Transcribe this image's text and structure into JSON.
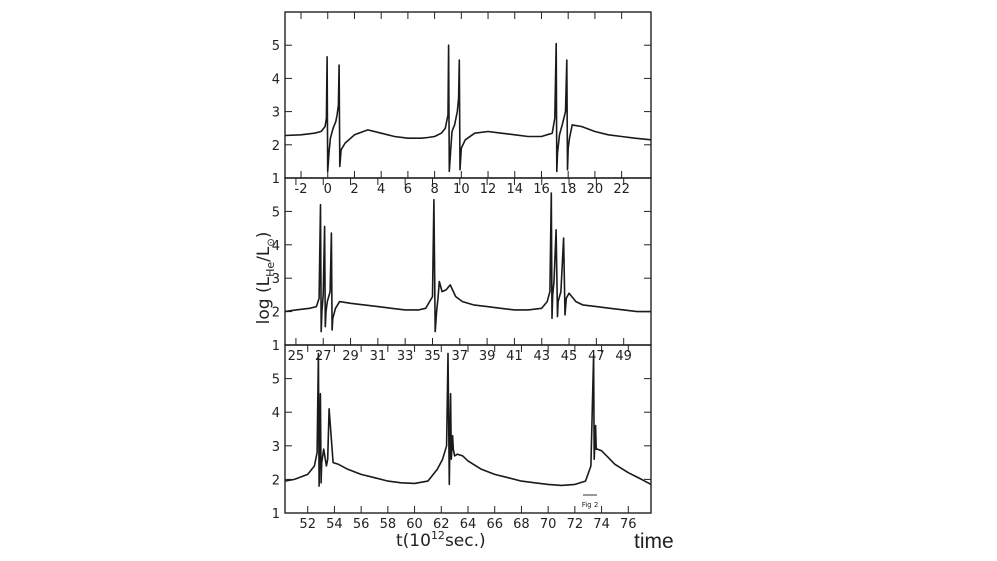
{
  "ylabel": "log (L",
  "ylabel_sub": "He",
  "ylabel_tail": "/L",
  "ylabel_sun": "⊙",
  "ylabel_close": ")",
  "xlabel_main": "t(10",
  "xlabel_exp": "12",
  "xlabel_tail": "sec.)",
  "caption": "time",
  "fig_note": "Fig 2",
  "chart_data": [
    {
      "type": "line",
      "panel": "top",
      "xlim": [
        -3.2,
        24.2
      ],
      "ylim": [
        1,
        6
      ],
      "yticks": [
        "1",
        "2",
        "3",
        "4",
        "5"
      ],
      "xticks": [
        "-2",
        "0",
        "2",
        "4",
        "6",
        "8",
        "10",
        "12",
        "14",
        "16",
        "18",
        "20",
        "22"
      ],
      "series": [
        {
          "x": [
            -3.2,
            -2,
            -1,
            -0.5,
            -0.2,
            -0.1,
            -0.05,
            0,
            0.1,
            0.2,
            0.4,
            0.6,
            0.7,
            0.8,
            0.85,
            0.9,
            1.0,
            1.3,
            2,
            3,
            4,
            5,
            6,
            7,
            7.5,
            8,
            8.5,
            8.8,
            9.0,
            9.05,
            9.1,
            9.2,
            9.3,
            9.5,
            9.7,
            9.8,
            9.85,
            9.9,
            10.0,
            10.3,
            11,
            12,
            13,
            14,
            15,
            16,
            16.8,
            17.0,
            17.1,
            17.15,
            17.2,
            17.35,
            17.55,
            17.8,
            17.9,
            17.95,
            18.0,
            18.1,
            18.3,
            19,
            20,
            21,
            22,
            23,
            24.2
          ],
          "y": [
            2.28,
            2.3,
            2.35,
            2.4,
            2.55,
            2.8,
            4.65,
            1.2,
            1.8,
            2.2,
            2.5,
            2.7,
            2.9,
            3.2,
            4.4,
            1.35,
            1.85,
            2.05,
            2.3,
            2.45,
            2.35,
            2.25,
            2.2,
            2.2,
            2.22,
            2.25,
            2.35,
            2.5,
            2.9,
            5.0,
            1.2,
            1.8,
            2.4,
            2.6,
            3.0,
            3.4,
            4.55,
            1.25,
            1.9,
            2.15,
            2.35,
            2.4,
            2.35,
            2.3,
            2.25,
            2.25,
            2.35,
            2.8,
            5.05,
            1.2,
            1.75,
            2.3,
            2.6,
            3.0,
            4.55,
            1.25,
            1.9,
            2.2,
            2.6,
            2.55,
            2.4,
            2.3,
            2.25,
            2.2,
            2.15
          ]
        }
      ]
    },
    {
      "type": "line",
      "panel": "middle",
      "xlim": [
        24.2,
        51
      ],
      "ylim": [
        1,
        6
      ],
      "yticks": [
        "1",
        "2",
        "3",
        "4",
        "5"
      ],
      "xticks": [
        "25",
        "27",
        "29",
        "31",
        "33",
        "35",
        "37",
        "39",
        "41",
        "43",
        "45",
        "47",
        "49"
      ],
      "series": [
        {
          "x": [
            24.2,
            25,
            26,
            26.5,
            26.7,
            26.8,
            26.85,
            26.9,
            27.0,
            27.1,
            27.15,
            27.2,
            27.3,
            27.5,
            27.6,
            27.65,
            27.7,
            27.9,
            28.2,
            29,
            30,
            31,
            32,
            33,
            34,
            34.5,
            35.0,
            35.1,
            35.2,
            35.3,
            35.4,
            35.5,
            35.7,
            36.0,
            36.3,
            36.7,
            37.2,
            38,
            39,
            40,
            41,
            42,
            43,
            43.4,
            43.6,
            43.7,
            43.75,
            43.8,
            43.9,
            44.05,
            44.15,
            44.2,
            44.4,
            44.6,
            44.7,
            44.8,
            45.0,
            45.5,
            46,
            47,
            48,
            49,
            50,
            51
          ],
          "y": [
            2.0,
            2.05,
            2.1,
            2.15,
            2.4,
            5.2,
            1.4,
            2.0,
            2.5,
            4.55,
            1.55,
            2.0,
            2.3,
            2.6,
            4.35,
            1.45,
            1.8,
            2.1,
            2.3,
            2.25,
            2.2,
            2.15,
            2.1,
            2.05,
            2.05,
            2.1,
            2.45,
            5.35,
            1.4,
            2.0,
            2.4,
            2.9,
            2.6,
            2.65,
            2.8,
            2.45,
            2.3,
            2.2,
            2.15,
            2.1,
            2.05,
            2.05,
            2.1,
            2.3,
            2.6,
            5.55,
            1.8,
            2.5,
            2.9,
            4.45,
            1.85,
            2.3,
            2.6,
            4.2,
            1.9,
            2.4,
            2.55,
            2.3,
            2.2,
            2.15,
            2.1,
            2.05,
            2.0,
            2.0
          ]
        }
      ]
    },
    {
      "type": "line",
      "panel": "bottom",
      "xlim": [
        50.3,
        77.7
      ],
      "ylim": [
        1,
        6
      ],
      "yticks": [
        "1",
        "2",
        "3",
        "4",
        "5"
      ],
      "xticks": [
        "52",
        "54",
        "56",
        "58",
        "60",
        "62",
        "64",
        "66",
        "68",
        "70",
        "72",
        "74",
        "76"
      ],
      "series": [
        {
          "x": [
            50.3,
            51,
            52,
            52.5,
            52.7,
            52.8,
            52.85,
            52.95,
            53.0,
            53.05,
            53.2,
            53.4,
            53.5,
            53.6,
            53.9,
            54.3,
            55,
            56,
            57,
            58,
            59,
            60,
            61,
            61.7,
            62.1,
            62.4,
            62.5,
            62.6,
            62.7,
            62.75,
            62.85,
            62.9,
            63.0,
            63.2,
            63.6,
            64,
            65,
            66,
            67,
            68,
            69,
            70,
            71,
            72,
            72.8,
            73.2,
            73.4,
            73.45,
            73.55,
            73.6,
            73.7,
            74.0,
            74.5,
            75,
            76,
            77,
            77.7
          ],
          "y": [
            1.95,
            2.0,
            2.15,
            2.4,
            2.8,
            5.75,
            1.8,
            4.55,
            1.9,
            2.5,
            2.9,
            2.4,
            2.6,
            4.1,
            2.5,
            2.45,
            2.3,
            2.15,
            2.05,
            1.95,
            1.9,
            1.88,
            1.95,
            2.3,
            2.6,
            3.0,
            5.75,
            1.85,
            4.55,
            2.6,
            3.3,
            2.9,
            2.7,
            2.75,
            2.7,
            2.55,
            2.3,
            2.15,
            2.05,
            1.95,
            1.9,
            1.85,
            1.82,
            1.85,
            1.95,
            2.4,
            5.7,
            2.6,
            3.6,
            2.9,
            2.9,
            2.85,
            2.65,
            2.45,
            2.2,
            2.0,
            1.85
          ]
        }
      ]
    }
  ]
}
